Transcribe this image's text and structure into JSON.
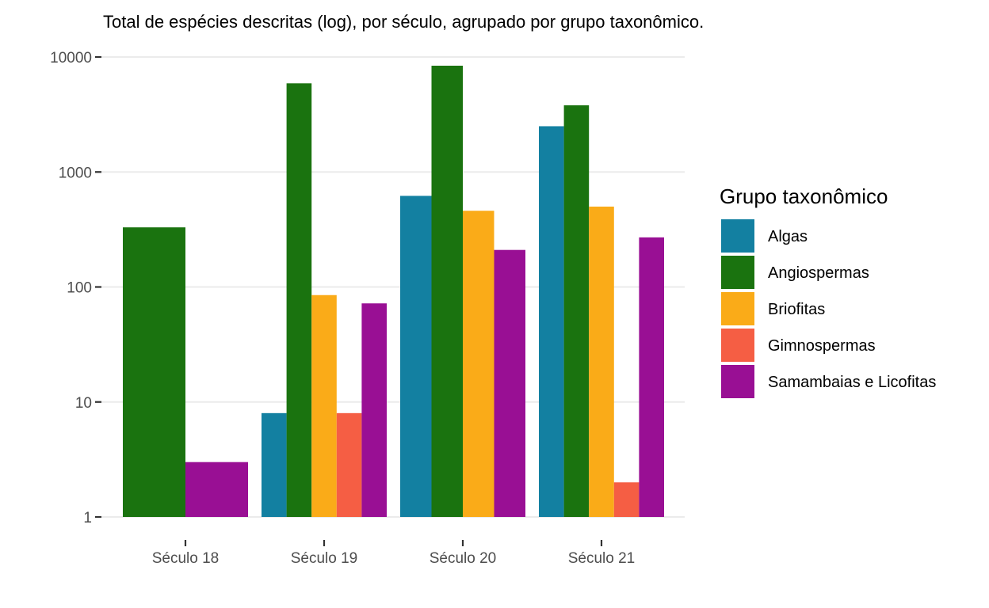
{
  "chart_data": {
    "type": "bar",
    "title": "Total de espécies descritas (log), por século, agrupado por grupo taxonômico.",
    "xlabel": "",
    "ylabel": "",
    "y_scale": "log10",
    "ylim": [
      1,
      10000
    ],
    "y_ticks": [
      1,
      10,
      100,
      1000,
      10000
    ],
    "y_tick_labels": [
      "1",
      "10",
      "100",
      "1000",
      "10000"
    ],
    "grid": true,
    "legend": {
      "title": "Grupo taxonômico",
      "placement": "right"
    },
    "categories": [
      "Século 18",
      "Século 19",
      "Século 20",
      "Século 21"
    ],
    "series": [
      {
        "name": "Algas",
        "color": "#1380A1",
        "values": [
          null,
          8,
          620,
          2500
        ]
      },
      {
        "name": "Angiospermas",
        "color": "#1A730F",
        "values": [
          330,
          5900,
          8400,
          3800
        ]
      },
      {
        "name": "Briofitas",
        "color": "#FAAB18",
        "values": [
          null,
          85,
          460,
          500
        ]
      },
      {
        "name": "Gimnospermas",
        "color": "#F55E44",
        "values": [
          null,
          8,
          null,
          2
        ]
      },
      {
        "name": "Samambaias e Licofitas",
        "color": "#990F94",
        "values": [
          3,
          72,
          210,
          270
        ]
      }
    ]
  }
}
